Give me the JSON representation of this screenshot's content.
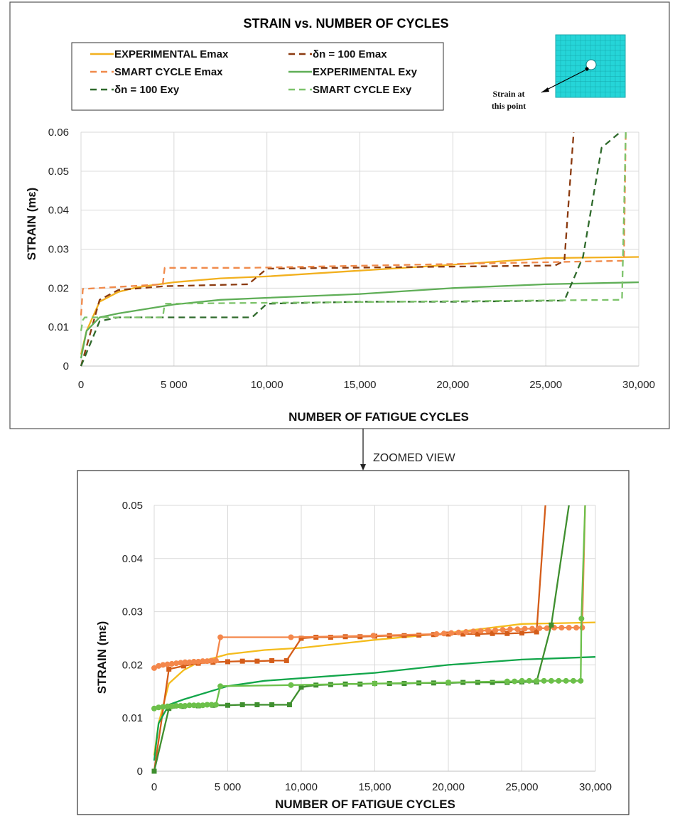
{
  "chart_data": [
    {
      "type": "line",
      "title": "STRAIN vs. NUMBER OF CYCLES",
      "xlabel": "NUMBER OF FATIGUE CYCLES",
      "ylabel": "STRAIN (mε)",
      "xlim": [
        0,
        30000
      ],
      "ylim": [
        0,
        0.06
      ],
      "xticks": [
        0,
        5000,
        10000,
        15000,
        20000,
        25000,
        30000
      ],
      "xtick_labels": [
        "0",
        "5 000",
        "10,000",
        "15,000",
        "20,000",
        "25,000",
        "30,000"
      ],
      "yticks": [
        0,
        0.01,
        0.02,
        0.03,
        0.04,
        0.05,
        0.06
      ],
      "ytick_labels": [
        "0",
        "0.01",
        "0.02",
        "0.03",
        "0.04",
        "0.05",
        "0.06"
      ],
      "grid": true,
      "legend_position": "top-left",
      "inset_note": "Strain at this point",
      "series": [
        {
          "name": "EXPERIMENTAL Emax",
          "color": "#f2b01e",
          "dash": "solid",
          "x": [
            0,
            300,
            1000,
            2000,
            3000,
            5000,
            7500,
            10000,
            15000,
            20000,
            25000,
            30000
          ],
          "y": [
            0.003,
            0.009,
            0.0165,
            0.019,
            0.0202,
            0.0215,
            0.0225,
            0.023,
            0.0245,
            0.026,
            0.0277,
            0.028
          ]
        },
        {
          "name": "δn = 100 Emax",
          "color": "#8b3a0f",
          "dash": "dashed",
          "x": [
            0,
            300,
            1000,
            2000,
            4500,
            9000,
            10000,
            25500,
            26000,
            26500
          ],
          "y": [
            0.0,
            0.005,
            0.017,
            0.0195,
            0.0205,
            0.021,
            0.025,
            0.0258,
            0.027,
            0.062
          ]
        },
        {
          "name": "SMART CYCLE Emax",
          "color": "#f08a4b",
          "dash": "dashed",
          "x": [
            0,
            100,
            200,
            4400,
            4500,
            9000,
            29100,
            29200,
            29300
          ],
          "y": [
            0.013,
            0.0198,
            0.0198,
            0.021,
            0.0252,
            0.0252,
            0.027,
            0.027,
            0.062
          ]
        },
        {
          "name": "EXPERIMENTAL Exy",
          "color": "#5fae57",
          "dash": "solid",
          "x": [
            0,
            300,
            1000,
            2000,
            5000,
            7500,
            10000,
            15000,
            20000,
            25000,
            30000
          ],
          "y": [
            0.002,
            0.009,
            0.0125,
            0.0135,
            0.0158,
            0.017,
            0.0175,
            0.0185,
            0.02,
            0.021,
            0.0215
          ]
        },
        {
          "name": "δn = 100 Exy",
          "color": "#2f6a2c",
          "dash": "dashed",
          "x": [
            0,
            1000,
            2000,
            9200,
            10000,
            15000,
            20000,
            26000,
            27000,
            28000,
            29000
          ],
          "y": [
            0.0,
            0.0115,
            0.0125,
            0.0125,
            0.016,
            0.0165,
            0.0165,
            0.0168,
            0.028,
            0.056,
            0.061
          ]
        },
        {
          "name": "SMART CYCLE Exy",
          "color": "#7dc36b",
          "dash": "dashed",
          "x": [
            0,
            100,
            200,
            4400,
            4500,
            9000,
            29000,
            29100,
            29300
          ],
          "y": [
            0.009,
            0.0118,
            0.0125,
            0.0125,
            0.016,
            0.0162,
            0.017,
            0.017,
            0.06
          ]
        }
      ]
    },
    {
      "type": "line",
      "title": "",
      "xlabel": "NUMBER OF FATIGUE CYCLES",
      "ylabel": "STRAIN (mε)",
      "xlim": [
        0,
        30000
      ],
      "ylim": [
        0,
        0.05
      ],
      "xticks": [
        0,
        5000,
        10000,
        15000,
        20000,
        25000,
        30000
      ],
      "xtick_labels": [
        "0",
        "5 000",
        "10,000",
        "15,000",
        "20,000",
        "25,000",
        "30,000"
      ],
      "yticks": [
        0,
        0.01,
        0.02,
        0.03,
        0.04,
        0.05
      ],
      "ytick_labels": [
        "0",
        "0.01",
        "0.02",
        "0.03",
        "0.04",
        "0.05"
      ],
      "grid": true,
      "series": [
        {
          "color": "#f4bc1c",
          "marker": "none",
          "x": [
            0,
            300,
            1000,
            2000,
            3000,
            5000,
            7500,
            10000,
            15000,
            20000,
            25000,
            30000
          ],
          "y": [
            0.003,
            0.009,
            0.0165,
            0.019,
            0.0205,
            0.022,
            0.0228,
            0.0232,
            0.0247,
            0.026,
            0.0277,
            0.028
          ]
        },
        {
          "color": "#d45d1a",
          "marker": "square",
          "x": [
            0,
            1000,
            2000,
            3000,
            4000,
            5000,
            6000,
            7000,
            8000,
            9000,
            10000,
            11000,
            12000,
            13000,
            14000,
            15000,
            16000,
            17000,
            18000,
            19000,
            20000,
            21000,
            22000,
            23000,
            24000,
            25000,
            26000,
            26600
          ],
          "y": [
            0.0,
            0.0192,
            0.0198,
            0.0203,
            0.0205,
            0.0206,
            0.0207,
            0.0207,
            0.0208,
            0.0208,
            0.025,
            0.0252,
            0.0252,
            0.0253,
            0.0253,
            0.0254,
            0.0255,
            0.0255,
            0.0256,
            0.0257,
            0.0258,
            0.0258,
            0.0258,
            0.0259,
            0.0259,
            0.026,
            0.0262,
            0.052
          ]
        },
        {
          "color": "#f4874b",
          "marker": "circle",
          "x": [
            0,
            300,
            600,
            900,
            1200,
            1500,
            1800,
            2100,
            2400,
            2700,
            3000,
            3300,
            3600,
            3900,
            4200,
            4500,
            9300,
            14900,
            19200,
            19700,
            20200,
            20700,
            21200,
            21700,
            22200,
            22700,
            23200,
            23700,
            24200,
            24700,
            25200,
            25700,
            26200,
            26700,
            27200,
            27700,
            28200,
            28700,
            29100,
            29300
          ],
          "y": [
            0.0194,
            0.0198,
            0.02,
            0.0201,
            0.0202,
            0.0203,
            0.0204,
            0.0205,
            0.0205,
            0.0206,
            0.0206,
            0.0207,
            0.0207,
            0.0208,
            0.0208,
            0.0252,
            0.0252,
            0.0255,
            0.0258,
            0.0259,
            0.026,
            0.0261,
            0.0262,
            0.0263,
            0.0264,
            0.0265,
            0.0265,
            0.0266,
            0.0267,
            0.0267,
            0.0268,
            0.0268,
            0.0269,
            0.0269,
            0.027,
            0.027,
            0.027,
            0.027,
            0.027,
            0.052
          ]
        },
        {
          "color": "#12a64a",
          "marker": "none",
          "x": [
            0,
            300,
            1000,
            2000,
            5000,
            7500,
            10000,
            15000,
            20000,
            25000,
            30000
          ],
          "y": [
            0.002,
            0.009,
            0.0125,
            0.0135,
            0.016,
            0.017,
            0.0175,
            0.0185,
            0.02,
            0.021,
            0.0215
          ]
        },
        {
          "color": "#3f8f2f",
          "marker": "square",
          "x": [
            0,
            1000,
            2000,
            3000,
            4000,
            5000,
            6000,
            7000,
            8000,
            9200,
            10000,
            11000,
            12000,
            13000,
            14000,
            15000,
            16000,
            17000,
            18000,
            19000,
            20000,
            21000,
            22000,
            23000,
            24000,
            25000,
            26000,
            27000,
            28200
          ],
          "y": [
            0.0,
            0.0118,
            0.0122,
            0.0123,
            0.0124,
            0.0124,
            0.0125,
            0.0125,
            0.0125,
            0.0125,
            0.0158,
            0.0162,
            0.0163,
            0.0164,
            0.0164,
            0.0165,
            0.0165,
            0.0165,
            0.0166,
            0.0166,
            0.0166,
            0.0167,
            0.0167,
            0.0167,
            0.0167,
            0.0168,
            0.0168,
            0.0275,
            0.052
          ]
        },
        {
          "color": "#6cc04a",
          "marker": "circle",
          "x": [
            0,
            300,
            600,
            900,
            1200,
            1500,
            1800,
            2100,
            2400,
            2700,
            3000,
            3300,
            3600,
            3900,
            4200,
            4500,
            9300,
            15000,
            20000,
            24000,
            24500,
            25000,
            25500,
            26000,
            26500,
            27000,
            27500,
            28000,
            28500,
            29000,
            29050,
            29300
          ],
          "y": [
            0.0118,
            0.012,
            0.0121,
            0.0122,
            0.0122,
            0.0123,
            0.0123,
            0.0123,
            0.0124,
            0.0124,
            0.0124,
            0.0124,
            0.0125,
            0.0125,
            0.0125,
            0.016,
            0.0162,
            0.0165,
            0.0167,
            0.0169,
            0.0169,
            0.017,
            0.017,
            0.017,
            0.017,
            0.017,
            0.017,
            0.017,
            0.017,
            0.017,
            0.0287,
            0.052
          ]
        }
      ]
    }
  ],
  "annotation": {
    "zoom_label": "ZOOMED VIEW"
  }
}
